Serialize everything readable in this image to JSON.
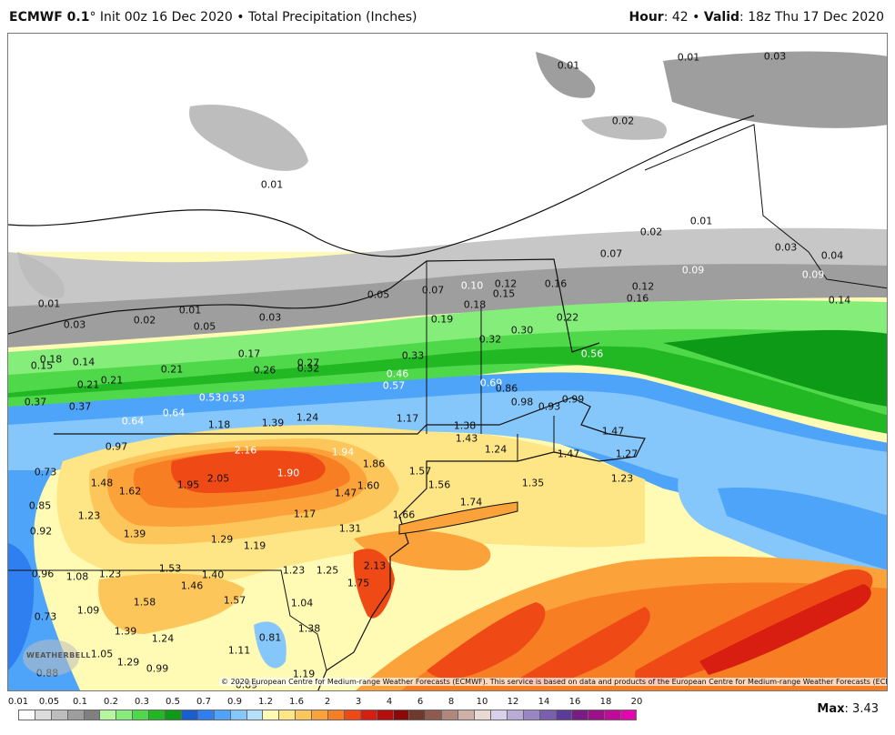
{
  "header": {
    "model": "ECMWF 0.1",
    "degree": "°",
    "init": "Init 00z 16 Dec 2020",
    "separator": "•",
    "product": "Total Precipitation (Inches)",
    "hour_label": "Hour",
    "hour_value": "42",
    "valid_label": "Valid",
    "valid_value": "18z Thu 17 Dec 2020"
  },
  "copyright": "© 2020 European Centre for Medium-range Weather Forecasts (ECMWF). This service is based on data and products of the European Centre for Medium-range Weather Forecasts (ECMWF).",
  "logo": {
    "text": "WEATHERBELL"
  },
  "legend": {
    "ticks": [
      "0.01",
      "0.05",
      "0.1",
      "0.2",
      "0.3",
      "0.5",
      "0.7",
      "0.9",
      "1.2",
      "1.6",
      "2",
      "3",
      "4",
      "6",
      "8",
      "10",
      "12",
      "14",
      "16",
      "18",
      "20"
    ],
    "colors": [
      "#ffffff",
      "#dcdcdc",
      "#bdbdbd",
      "#9e9e9e",
      "#808080",
      "#b5f7a0",
      "#85ee7a",
      "#50d84b",
      "#21b824",
      "#0d9a16",
      "#1a5fd0",
      "#2f7ff0",
      "#4ea4f8",
      "#86c7fb",
      "#b5e0fc",
      "#fffbb4",
      "#fee585",
      "#fdc65a",
      "#fca23a",
      "#f77e23",
      "#ef4a16",
      "#d71e10",
      "#b60d0d",
      "#8d0808",
      "#6e3a2e",
      "#8f5b4f",
      "#b0877c",
      "#cdb1a8",
      "#e8d9d3",
      "#d9d1ea",
      "#b9acd6",
      "#9a86c2",
      "#7b5fae",
      "#5d3b98",
      "#7a1c86",
      "#9e108a",
      "#c20a9a",
      "#e604ae"
    ]
  },
  "max": {
    "label": "Max",
    "value": "3.43"
  },
  "map_labels": [
    {
      "v": "0.01",
      "c": "d"
    },
    {
      "v": "0.01",
      "c": "d"
    },
    {
      "v": "0.03",
      "c": "d"
    },
    {
      "v": "0.02",
      "c": "d"
    },
    {
      "v": "0.01",
      "c": "d"
    },
    {
      "v": "0.01",
      "c": "d"
    },
    {
      "v": "0.02",
      "c": "d"
    },
    {
      "v": "0.07",
      "c": "d"
    },
    {
      "v": "0.03",
      "c": "d"
    },
    {
      "v": "0.04",
      "c": "d"
    },
    {
      "v": "0.09",
      "c": "w"
    },
    {
      "v": "0.09",
      "c": "w"
    },
    {
      "v": "0.14",
      "c": "d"
    },
    {
      "v": "0.01",
      "c": "d"
    },
    {
      "v": "0.03",
      "c": "d"
    },
    {
      "v": "0.02",
      "c": "d"
    },
    {
      "v": "0.01",
      "c": "d"
    },
    {
      "v": "0.05",
      "c": "d"
    },
    {
      "v": "0.03",
      "c": "d"
    },
    {
      "v": "0.05",
      "c": "d"
    },
    {
      "v": "0.07",
      "c": "d"
    },
    {
      "v": "0.10",
      "c": "w"
    },
    {
      "v": "0.12",
      "c": "d"
    },
    {
      "v": "0.15",
      "c": "d"
    },
    {
      "v": "0.16",
      "c": "d"
    },
    {
      "v": "0.12",
      "c": "d"
    },
    {
      "v": "0.16",
      "c": "d"
    },
    {
      "v": "0.18",
      "c": "d"
    },
    {
      "v": "0.19",
      "c": "d"
    },
    {
      "v": "0.30",
      "c": "d"
    },
    {
      "v": "0.22",
      "c": "d"
    },
    {
      "v": "0.18",
      "c": "d"
    },
    {
      "v": "0.15",
      "c": "d"
    },
    {
      "v": "0.14",
      "c": "d"
    },
    {
      "v": "0.21",
      "c": "d"
    },
    {
      "v": "0.21",
      "c": "d"
    },
    {
      "v": "0.17",
      "c": "d"
    },
    {
      "v": "0.26",
      "c": "d"
    },
    {
      "v": "0.27",
      "c": "d"
    },
    {
      "v": "0.32",
      "c": "d"
    },
    {
      "v": "0.33",
      "c": "d"
    },
    {
      "v": "0.32",
      "c": "d"
    },
    {
      "v": "0.46",
      "c": "w"
    },
    {
      "v": "0.57",
      "c": "w"
    },
    {
      "v": "0.69",
      "c": "w"
    },
    {
      "v": "0.86",
      "c": "d"
    },
    {
      "v": "0.53",
      "c": "w"
    },
    {
      "v": "0.56",
      "c": "w"
    },
    {
      "v": "0.37",
      "c": "d"
    },
    {
      "v": "0.21",
      "c": "d"
    },
    {
      "v": "0.37",
      "c": "d"
    },
    {
      "v": "0.64",
      "c": "w"
    },
    {
      "v": "0.64",
      "c": "w"
    },
    {
      "v": "0.53",
      "c": "w"
    },
    {
      "v": "0.98",
      "c": "d"
    },
    {
      "v": "0.93",
      "c": "d"
    },
    {
      "v": "0.99",
      "c": "d"
    },
    {
      "v": "1.18",
      "c": "d"
    },
    {
      "v": "1.39",
      "c": "d"
    },
    {
      "v": "1.24",
      "c": "d"
    },
    {
      "v": "1.17",
      "c": "d"
    },
    {
      "v": "1.38",
      "c": "d"
    },
    {
      "v": "1.43",
      "c": "d"
    },
    {
      "v": "1.47",
      "c": "d"
    },
    {
      "v": "0.97",
      "c": "d"
    },
    {
      "v": "2.16",
      "c": "w"
    },
    {
      "v": "1.94",
      "c": "w"
    },
    {
      "v": "1.24",
      "c": "d"
    },
    {
      "v": "1.47",
      "c": "d"
    },
    {
      "v": "1.27",
      "c": "d"
    },
    {
      "v": "0.73",
      "c": "d"
    },
    {
      "v": "1.48",
      "c": "d"
    },
    {
      "v": "1.62",
      "c": "d"
    },
    {
      "v": "1.95",
      "c": "d"
    },
    {
      "v": "2.05",
      "c": "d"
    },
    {
      "v": "1.90",
      "c": "w"
    },
    {
      "v": "1.86",
      "c": "d"
    },
    {
      "v": "1.57",
      "c": "d"
    },
    {
      "v": "1.56",
      "c": "d"
    },
    {
      "v": "1.35",
      "c": "d"
    },
    {
      "v": "1.23",
      "c": "d"
    },
    {
      "v": "1.60",
      "c": "d"
    },
    {
      "v": "1.47",
      "c": "d"
    },
    {
      "v": "1.74",
      "c": "d"
    },
    {
      "v": "0.85",
      "c": "d"
    },
    {
      "v": "1.23",
      "c": "d"
    },
    {
      "v": "1.17",
      "c": "d"
    },
    {
      "v": "1.66",
      "c": "d"
    },
    {
      "v": "0.92",
      "c": "d"
    },
    {
      "v": "1.39",
      "c": "d"
    },
    {
      "v": "1.29",
      "c": "d"
    },
    {
      "v": "1.19",
      "c": "d"
    },
    {
      "v": "1.31",
      "c": "d"
    },
    {
      "v": "0.96",
      "c": "d"
    },
    {
      "v": "1.08",
      "c": "d"
    },
    {
      "v": "1.23",
      "c": "d"
    },
    {
      "v": "1.53",
      "c": "d"
    },
    {
      "v": "1.40",
      "c": "d"
    },
    {
      "v": "1.23",
      "c": "d"
    },
    {
      "v": "1.25",
      "c": "d"
    },
    {
      "v": "2.13",
      "c": "d"
    },
    {
      "v": "1.46",
      "c": "d"
    },
    {
      "v": "1.75",
      "c": "d"
    },
    {
      "v": "1.58",
      "c": "d"
    },
    {
      "v": "1.57",
      "c": "d"
    },
    {
      "v": "1.04",
      "c": "d"
    },
    {
      "v": "1.09",
      "c": "d"
    },
    {
      "v": "0.73",
      "c": "d"
    },
    {
      "v": "1.39",
      "c": "d"
    },
    {
      "v": "1.24",
      "c": "d"
    },
    {
      "v": "1.38",
      "c": "d"
    },
    {
      "v": "0.81",
      "c": "d"
    },
    {
      "v": "1.05",
      "c": "d"
    },
    {
      "v": "1.29",
      "c": "d"
    },
    {
      "v": "1.11",
      "c": "d"
    },
    {
      "v": "0.99",
      "c": "d"
    },
    {
      "v": "0.88",
      "c": "d"
    },
    {
      "v": "0.89",
      "c": "d"
    },
    {
      "v": "1.19",
      "c": "d"
    }
  ]
}
